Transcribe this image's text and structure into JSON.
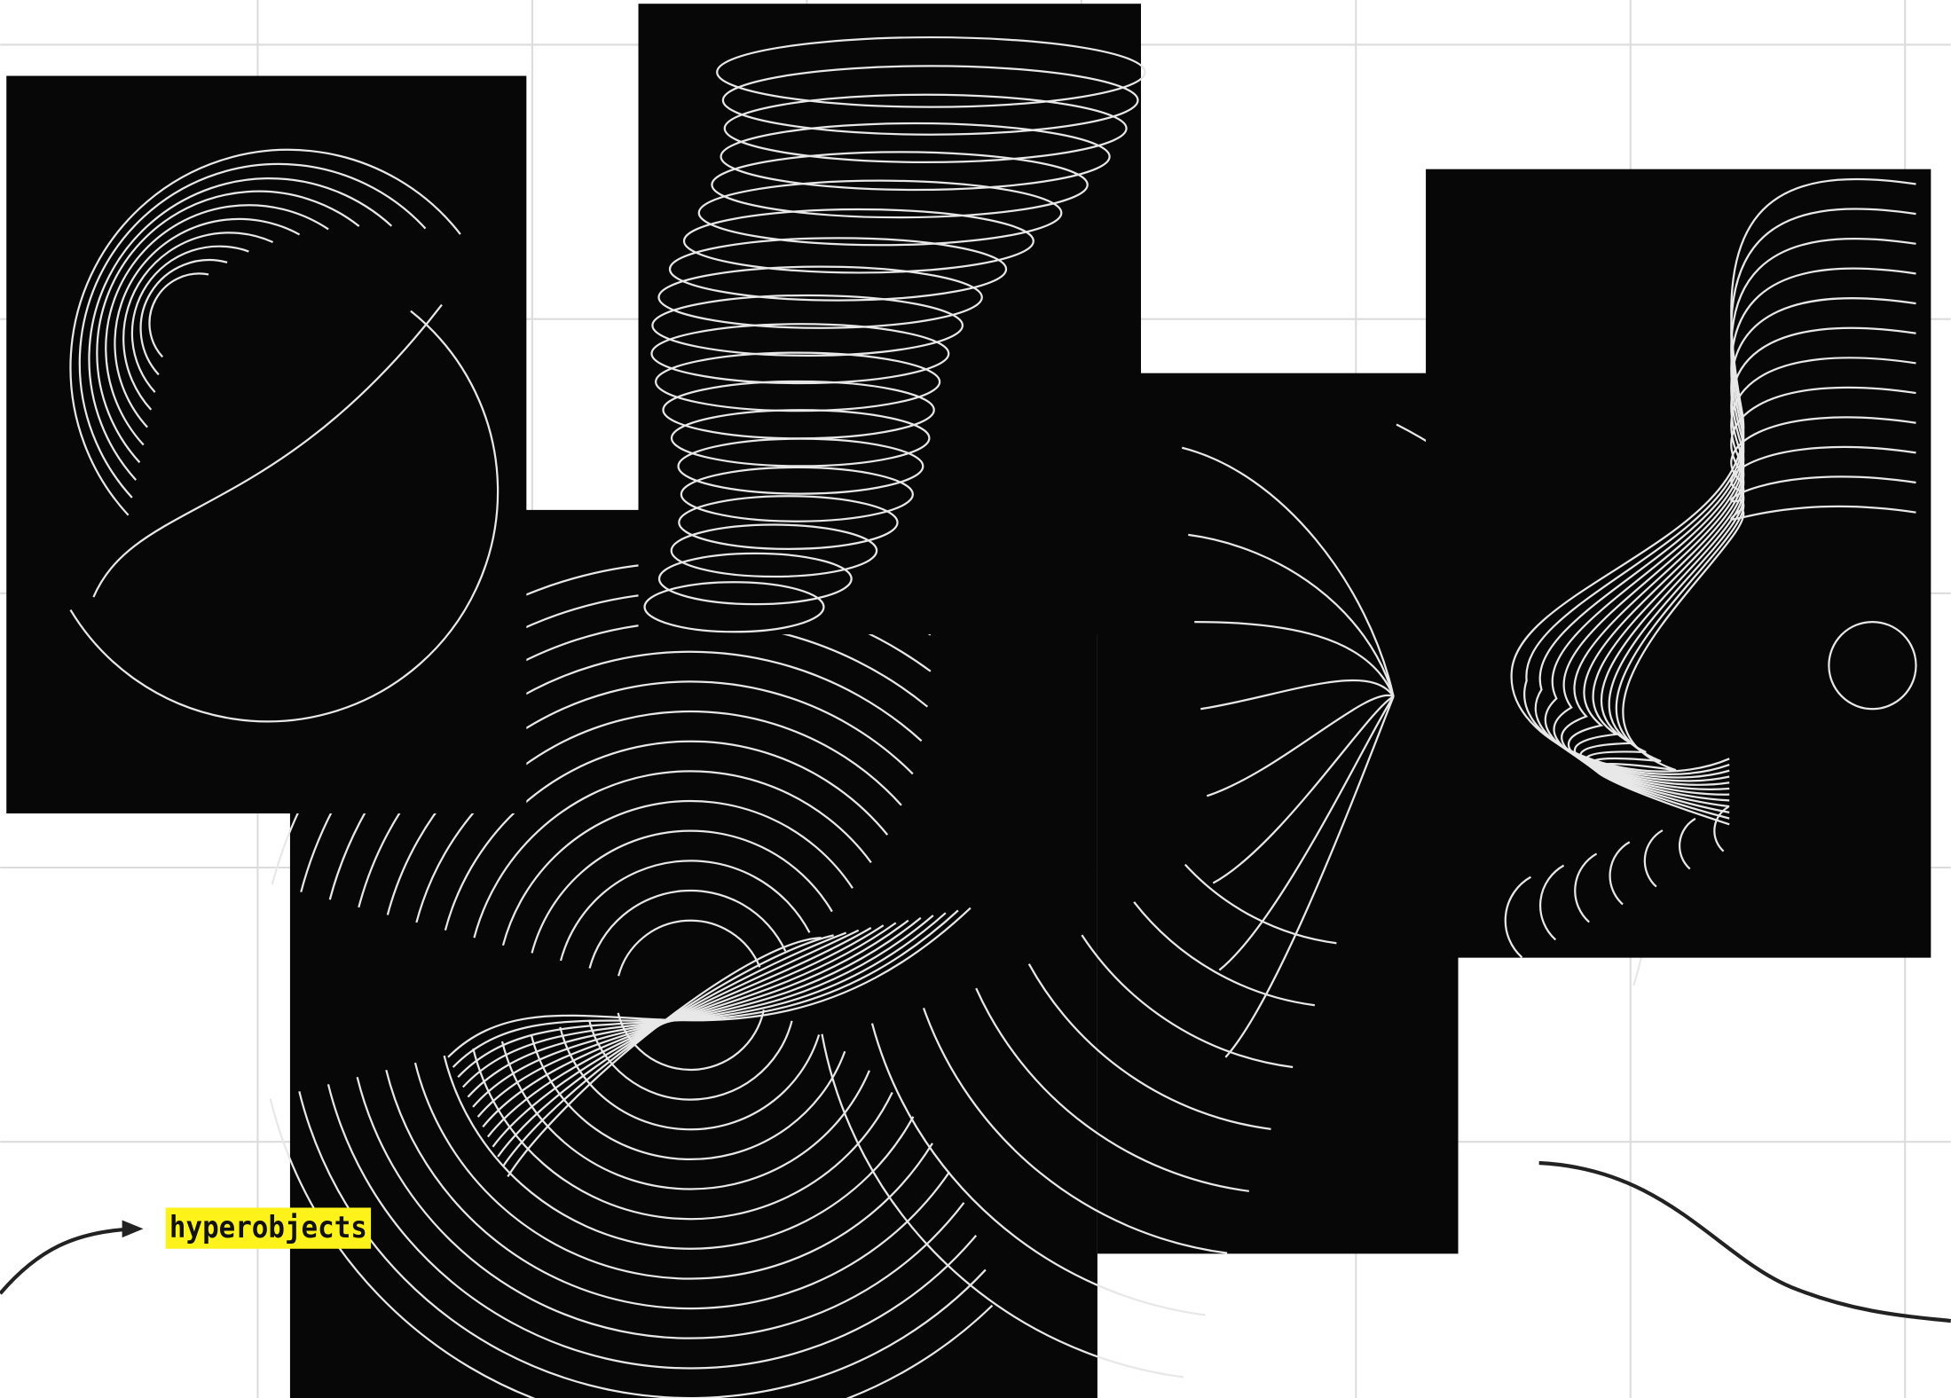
{
  "label": "hyperobjects"
}
